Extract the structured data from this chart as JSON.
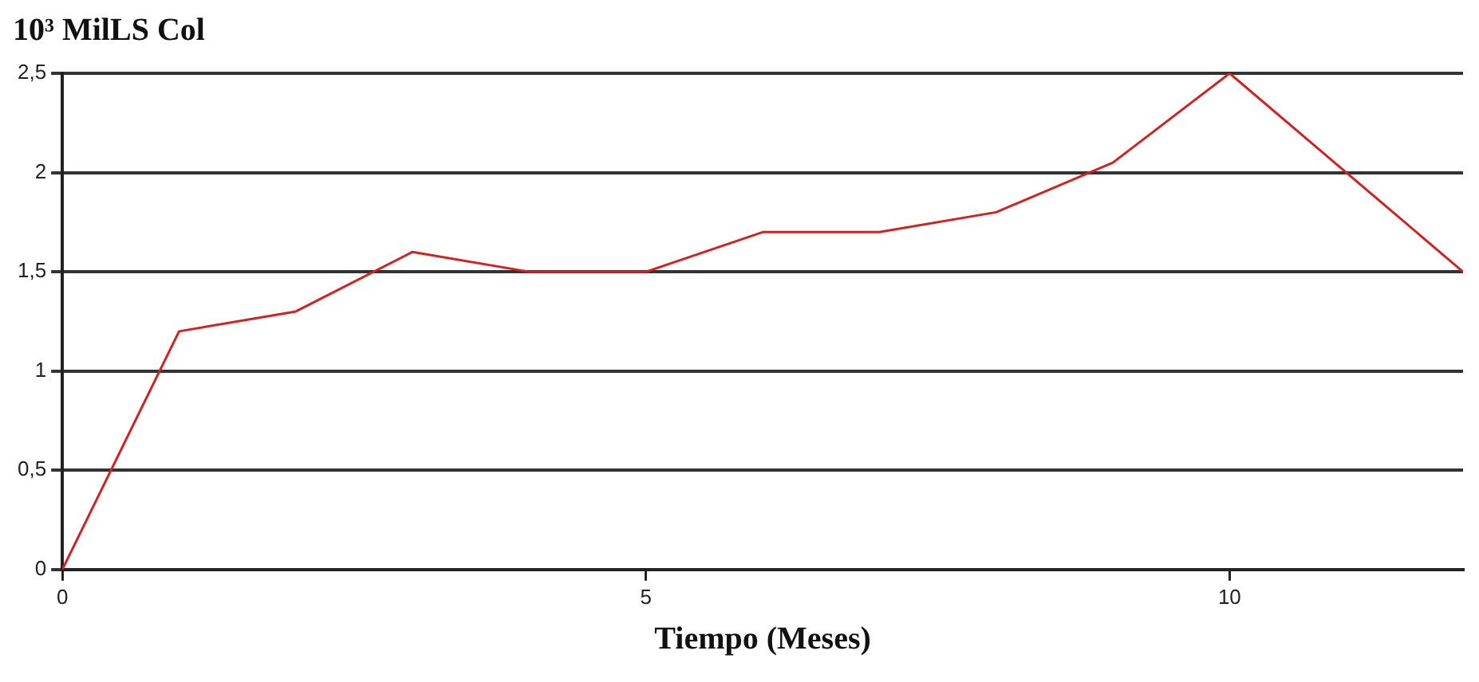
{
  "chart_data": {
    "type": "line",
    "ylabel": "10³ MilLS Col",
    "xlabel": "Tiempo (Meses)",
    "x": [
      0,
      1,
      2,
      3,
      4,
      5,
      6,
      7,
      8,
      9,
      10,
      11,
      12
    ],
    "series": [
      {
        "color": "#d42020",
        "values": [
          0,
          1.2,
          1.3,
          1.6,
          1.5,
          1.5,
          1.7,
          1.7,
          1.8,
          2.05,
          2.5,
          2.0,
          1.5
        ]
      }
    ],
    "xlim": [
      0,
      12
    ],
    "xticks": [
      0,
      5,
      10
    ],
    "ylim": [
      0,
      2.5
    ],
    "yticks": [
      0,
      {
        "value": 0.5,
        "label": "0,5"
      },
      1,
      {
        "value": 1.5,
        "label": "1,5"
      },
      2,
      {
        "value": 2.5,
        "label": "2,5"
      }
    ],
    "grid": "y",
    "legend": false,
    "marker": "none",
    "line_style": "solid"
  }
}
